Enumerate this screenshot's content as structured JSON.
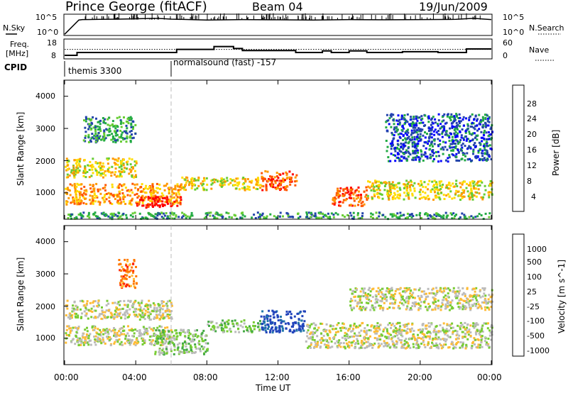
{
  "header": {
    "station": "Prince George (fitACF)",
    "beam": "Beam 04",
    "date": "19/Jun/2009"
  },
  "noise_panel": {
    "left_label": "N.Sky",
    "right_label": "N.Search",
    "left_ticks": [
      "10^5",
      "10^0"
    ],
    "right_ticks": [
      "10^5",
      "10^0"
    ]
  },
  "freq_panel": {
    "left_label_1": "Freq.",
    "left_label_2": "[MHz]",
    "left_ticks": [
      "18",
      "8"
    ],
    "right_ticks": [
      "60",
      "0"
    ],
    "right_label": "Nave"
  },
  "cpid_panel": {
    "label": "CPID",
    "segments": [
      {
        "start_hour": 0,
        "text": "themis 3300"
      },
      {
        "start_hour": 6,
        "text": "normalsound (fast) -157"
      }
    ]
  },
  "x_axis": {
    "ticks": [
      "00:00",
      "04:00",
      "08:00",
      "12:00",
      "16:00",
      "20:00",
      "00:00"
    ],
    "tick_hours": [
      0,
      4,
      8,
      12,
      16,
      20,
      24
    ],
    "label": "Time UT",
    "range": [
      0,
      24
    ]
  },
  "power_panel": {
    "ylabel": "Slant Range [km]",
    "yticks": [
      "4000",
      "3000",
      "2000",
      "1000"
    ],
    "colorbar_label": "Power [dB]",
    "colorbar_ticks": [
      "28",
      "24",
      "20",
      "16",
      "12",
      "8",
      "4"
    ],
    "colors": [
      "#0000ff",
      "#2244aa",
      "#22aa44",
      "#66cc33",
      "#ffdd00",
      "#ff9900",
      "#ff5500",
      "#ff0000"
    ]
  },
  "velocity_panel": {
    "ylabel": "Slant Range [km]",
    "yticks": [
      "4000",
      "3000",
      "2000",
      "1000"
    ],
    "colorbar_label": "Velocity [m s^-1]",
    "colorbar_ticks": [
      "1000",
      "500",
      "100",
      "25",
      "-25",
      "-100",
      "-500",
      "-1000"
    ],
    "colors": [
      "#2244bb",
      "#2277aa",
      "#44aa44",
      "#77cc33",
      "#bbbbbb",
      "#ffbb33",
      "#ff7700",
      "#ff2200",
      "#ee0000"
    ]
  },
  "chart_data": [
    {
      "type": "line",
      "title": "N.Sky / N.Search",
      "xlabel": "",
      "ylabel": "N.Sky",
      "ylim_log10": [
        0,
        5
      ],
      "series": [
        {
          "name": "N.Sky",
          "x": [
            0,
            0.8,
            1,
            2,
            3,
            4,
            5,
            5.5,
            6,
            8,
            10,
            12,
            14,
            16,
            18,
            20,
            22,
            23,
            24
          ],
          "log10_values": [
            0.3,
            3.9,
            4.0,
            4.05,
            4.1,
            4.2,
            4.3,
            4.25,
            4.1,
            3.9,
            4.0,
            3.95,
            3.9,
            4.0,
            3.95,
            4.0,
            4.05,
            4.3,
            4.0
          ]
        }
      ]
    },
    {
      "type": "line",
      "xlabel": "",
      "ylabel": "Freq. [MHz]",
      "ylim": [
        8,
        18
      ],
      "series": [
        {
          "name": "Freq.",
          "x": [
            0,
            0.7,
            0.7,
            6.3,
            6.3,
            8.4,
            8.4,
            9.5,
            9.5,
            10,
            10,
            13,
            13,
            14.5,
            14.5,
            15,
            15,
            16,
            16,
            17,
            17,
            19,
            19,
            21,
            21,
            22.6,
            22.6,
            24
          ],
          "values": [
            9.8,
            9.8,
            11.2,
            11.2,
            12.8,
            12.8,
            14.2,
            14.2,
            13.2,
            13.2,
            12.2,
            12.2,
            11.2,
            11.2,
            12.0,
            12.0,
            11.2,
            11.2,
            12.0,
            12.0,
            11.2,
            11.2,
            11.6,
            11.6,
            11.2,
            11.2,
            13.0,
            13.0
          ]
        },
        {
          "name": "Nave",
          "x": [
            0,
            24
          ],
          "values": [
            12.8,
            12.8
          ]
        }
      ]
    },
    {
      "type": "heatmap",
      "title": "Power [dB]",
      "xlabel": "Time UT",
      "ylabel": "Slant Range [km]",
      "xlim": [
        0,
        24
      ],
      "ylim": [
        180,
        4500
      ],
      "zlim": [
        0,
        32
      ],
      "bands": [
        {
          "t": [
            0,
            6.5
          ],
          "r": [
            650,
            1300
          ],
          "level": 5
        },
        {
          "t": [
            4,
            6.5
          ],
          "r": [
            550,
            900
          ],
          "level": 7
        },
        {
          "t": [
            0,
            4
          ],
          "r": [
            1500,
            2100
          ],
          "level": 4
        },
        {
          "t": [
            6.5,
            11
          ],
          "r": [
            1100,
            1500
          ],
          "level": 4
        },
        {
          "t": [
            11,
            13
          ],
          "r": [
            1100,
            1700
          ],
          "level": 6
        },
        {
          "t": [
            15,
            17
          ],
          "r": [
            600,
            1200
          ],
          "level": 6
        },
        {
          "t": [
            17,
            24
          ],
          "r": [
            800,
            1400
          ],
          "level": 4
        },
        {
          "t": [
            0,
            24
          ],
          "r": [
            200,
            400
          ],
          "level": 2
        },
        {
          "t": [
            1,
            4
          ],
          "r": [
            2600,
            3400
          ],
          "level": 2
        },
        {
          "t": [
            18,
            24
          ],
          "r": [
            2000,
            3500
          ],
          "level": 1
        }
      ]
    },
    {
      "type": "heatmap",
      "title": "Velocity [m s^-1]",
      "xlabel": "Time UT",
      "ylabel": "Slant Range [km]",
      "xlim": [
        0,
        24
      ],
      "ylim": [
        180,
        4500
      ],
      "zlim": [
        -1000,
        1000
      ],
      "bands": [
        {
          "t": [
            0,
            6
          ],
          "r": [
            800,
            1400
          ],
          "level": 4
        },
        {
          "t": [
            0,
            6
          ],
          "r": [
            1600,
            2200
          ],
          "level": 4
        },
        {
          "t": [
            5,
            8
          ],
          "r": [
            500,
            1300
          ],
          "level": 3
        },
        {
          "t": [
            8,
            11
          ],
          "r": [
            1200,
            1600
          ],
          "level": 3
        },
        {
          "t": [
            11,
            13.5
          ],
          "r": [
            1200,
            1900
          ],
          "level": 0
        },
        {
          "t": [
            13.5,
            24
          ],
          "r": [
            700,
            1500
          ],
          "level": 4
        },
        {
          "t": [
            16,
            24
          ],
          "r": [
            1900,
            2600
          ],
          "level": 4
        },
        {
          "t": [
            3,
            4
          ],
          "r": [
            2600,
            3500
          ],
          "level": 6
        }
      ]
    }
  ]
}
